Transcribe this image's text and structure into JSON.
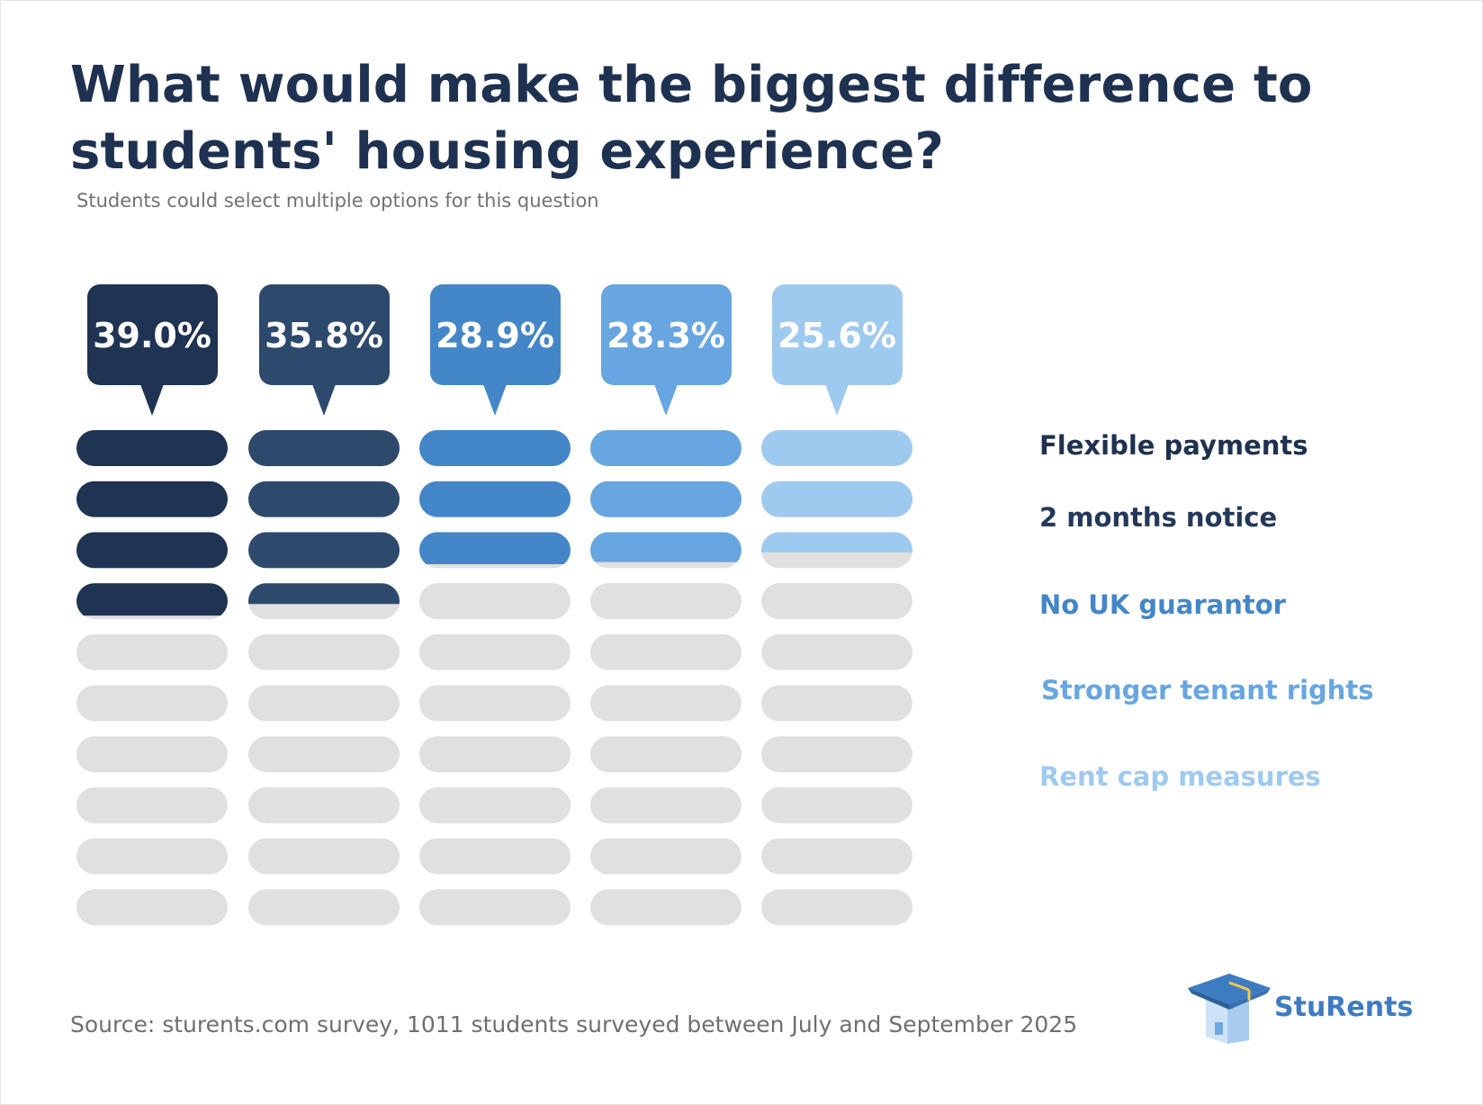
{
  "title": "What would make the biggest difference to students' housing experience?",
  "subtitle": "Students could select multiple options for this question",
  "source": "Source: sturents.com survey, 1011 students surveyed between July and September 2025",
  "brand": "StuRents",
  "colors": {
    "title": "#1e3150",
    "empty_pill": "#e0e0e0",
    "brand": "#3e7cc2"
  },
  "chart_data": {
    "type": "bar",
    "title": "What would make the biggest difference to students' housing experience?",
    "subtitle": "Students could select multiple options for this question",
    "unit": "%",
    "scale_max": 100,
    "pills_per_column": 10,
    "categories": [
      "Flexible payments",
      "2 months notice",
      "No UK guarantor",
      "Stronger tenant rights",
      "Rent cap measures"
    ],
    "values": [
      39.0,
      35.8,
      28.9,
      28.3,
      25.6
    ],
    "labels": [
      "39.0%",
      "35.8%",
      "28.9%",
      "28.3%",
      "25.6%"
    ],
    "colors": [
      "#1f3352",
      "#2d4a6d",
      "#4487c8",
      "#67a6e0",
      "#9fcaf0"
    ],
    "legend": [
      "Flexible payments",
      "2 months notice",
      "No UK guarantor",
      "Stronger tenant rights",
      "Rent cap measures"
    ]
  }
}
